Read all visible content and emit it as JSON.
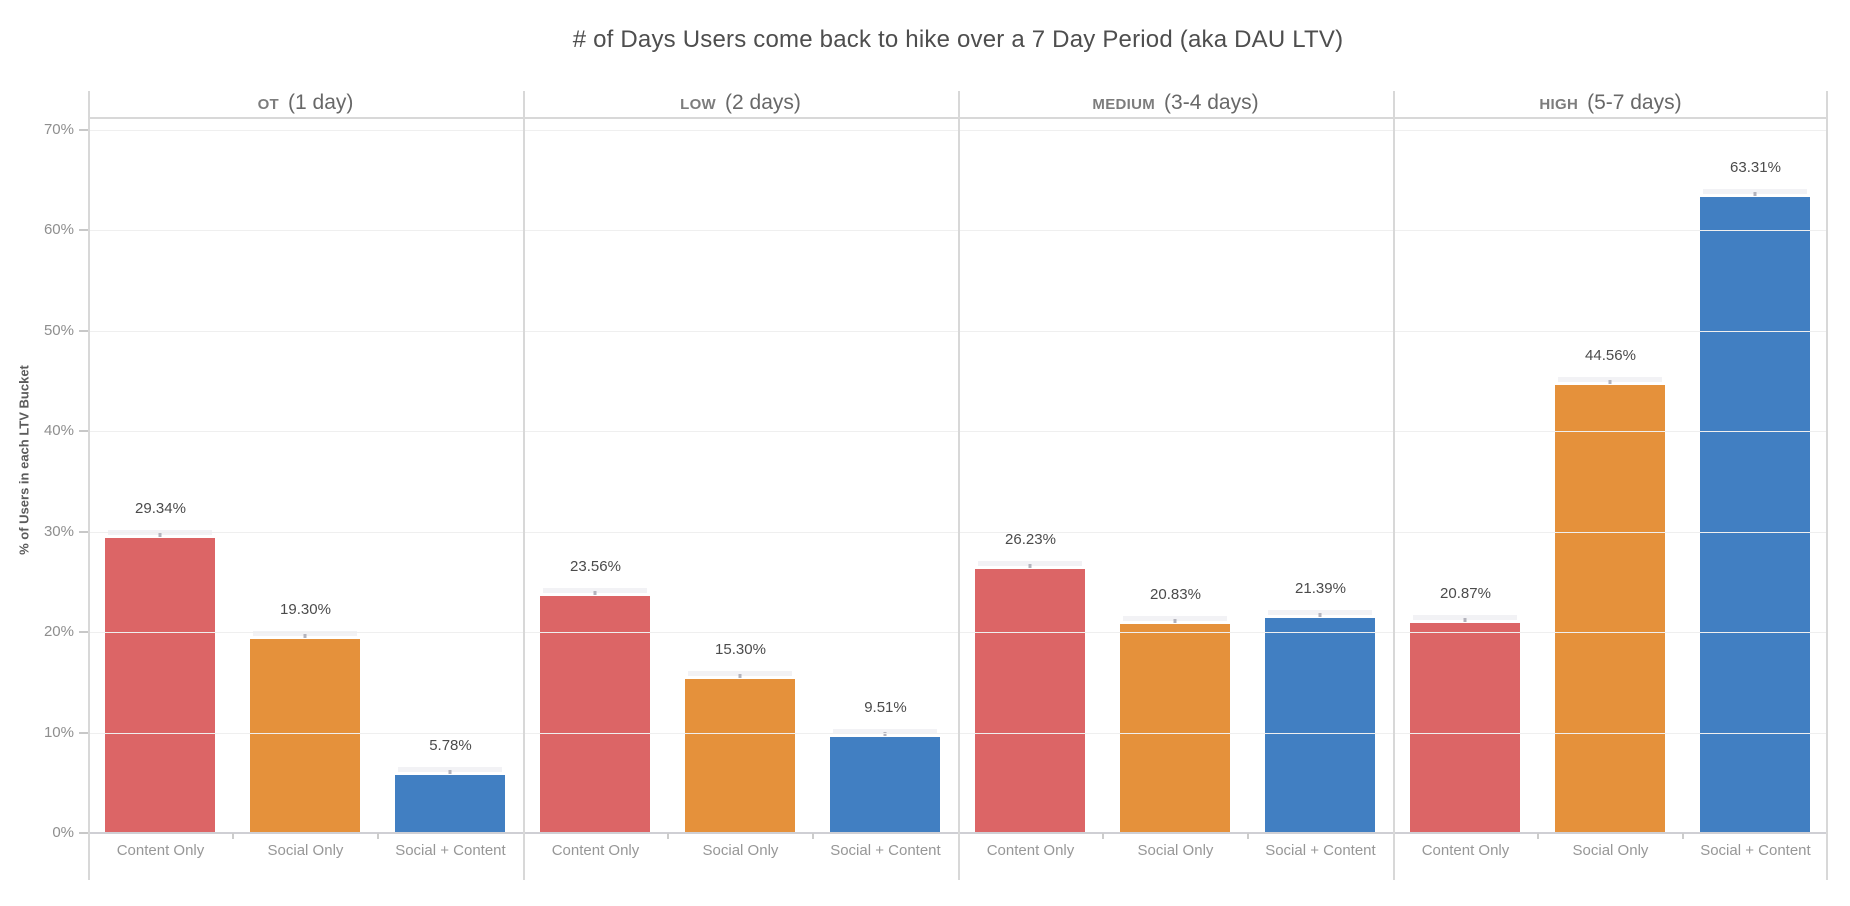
{
  "title": "# of Days Users come back to hike over a 7 Day Period (aka DAU LTV)",
  "y_axis": {
    "label": "% of Users in each LTV Bucket",
    "tick_labels": [
      "0%",
      "10%",
      "20%",
      "30%",
      "40%",
      "50%",
      "60%",
      "70%"
    ],
    "tick_values": [
      0,
      10,
      20,
      30,
      40,
      50,
      60,
      70
    ]
  },
  "chart_data": {
    "type": "bar",
    "title": "# of Days Users come back to hike over a 7 Day Period (aka DAU LTV)",
    "xlabel": "",
    "ylabel": "% of Users in each LTV Bucket",
    "ylim": [
      0,
      70
    ],
    "grid": "horizontal",
    "legend": "none",
    "categories": [
      "Content Only",
      "Social Only",
      "Social + Content"
    ],
    "bar_colors": [
      "#DC6566",
      "#E5913B",
      "#417FC2"
    ],
    "panels": [
      {
        "bucket": "OT",
        "range": "(1 day)",
        "values": [
          29.34,
          19.3,
          5.78
        ],
        "labels": [
          "29.34%",
          "19.30%",
          "5.78%"
        ]
      },
      {
        "bucket": "LOW",
        "range": "(2 days)",
        "values": [
          23.56,
          15.3,
          9.51
        ],
        "labels": [
          "23.56%",
          "15.30%",
          "9.51%"
        ]
      },
      {
        "bucket": "MEDIUM",
        "range": "(3-4 days)",
        "values": [
          26.23,
          20.83,
          21.39
        ],
        "labels": [
          "26.23%",
          "20.83%",
          "21.39%"
        ]
      },
      {
        "bucket": "HIGH",
        "range": "(5-7 days)",
        "values": [
          20.87,
          44.56,
          63.31
        ],
        "labels": [
          "20.87%",
          "44.56%",
          "63.31%"
        ]
      }
    ]
  }
}
